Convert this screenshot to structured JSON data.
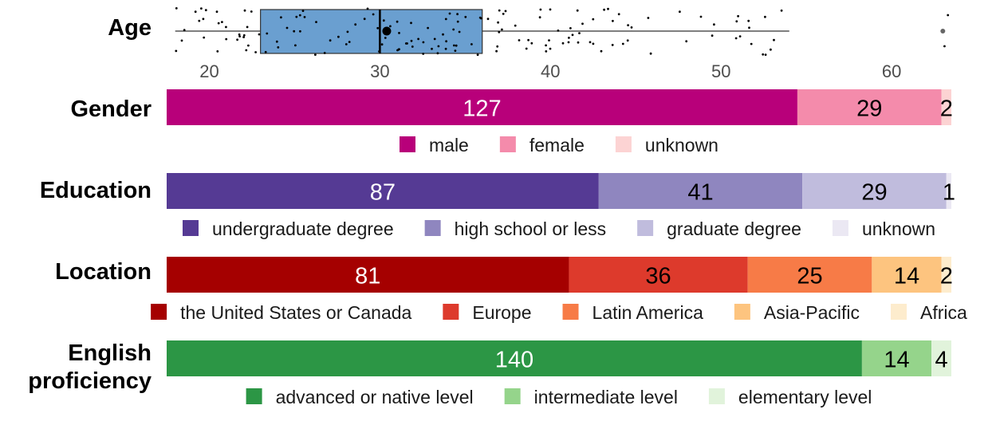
{
  "chart_data": [
    {
      "type": "boxplot",
      "row_label": "Age",
      "xlim": [
        17.5,
        63.5
      ],
      "ticks": [
        20,
        30,
        40,
        50,
        60
      ],
      "stats": {
        "q1": 23,
        "median": 30,
        "mean": 30.4,
        "q3": 36,
        "whisker_low": 18,
        "whisker_high": 54,
        "outliers": [
          63
        ]
      },
      "box_color": "#6a9fd0"
    },
    {
      "type": "stacked_bar",
      "row_label": "Gender",
      "segments": [
        {
          "name": "male",
          "value": 127,
          "color": "#b8007a",
          "text_color": "#ffffff"
        },
        {
          "name": "female",
          "value": 29,
          "color": "#f48bab",
          "text_color": "#000000"
        },
        {
          "name": "unknown",
          "value": 2,
          "color": "#fcd3d3",
          "text_color": "#000000"
        }
      ]
    },
    {
      "type": "stacked_bar",
      "row_label": "Education",
      "segments": [
        {
          "name": "undergraduate degree",
          "value": 87,
          "color": "#553a94",
          "text_color": "#ffffff"
        },
        {
          "name": "high school or less",
          "value": 41,
          "color": "#8f86bf",
          "text_color": "#000000"
        },
        {
          "name": "graduate degree",
          "value": 29,
          "color": "#c0bcdd",
          "text_color": "#000000"
        },
        {
          "name": "unknown",
          "value": 1,
          "color": "#ebe8f3",
          "text_color": "#000000"
        }
      ]
    },
    {
      "type": "stacked_bar",
      "row_label": "Location",
      "segments": [
        {
          "name": "the United States or Canada",
          "value": 81,
          "color": "#a50000",
          "text_color": "#ffffff"
        },
        {
          "name": "Europe",
          "value": 36,
          "color": "#dd3a2c",
          "text_color": "#000000"
        },
        {
          "name": "Latin America",
          "value": 25,
          "color": "#f77b47",
          "text_color": "#000000"
        },
        {
          "name": "Asia-Pacific",
          "value": 14,
          "color": "#fdc47f",
          "text_color": "#000000"
        },
        {
          "name": "Africa",
          "value": 2,
          "color": "#fdeccd",
          "text_color": "#000000"
        }
      ]
    },
    {
      "type": "stacked_bar",
      "row_label": "English proficiency",
      "segments": [
        {
          "name": "advanced or native level",
          "value": 140,
          "color": "#2c9645",
          "text_color": "#ffffff"
        },
        {
          "name": "intermediate level",
          "value": 14,
          "color": "#95d48b",
          "text_color": "#000000"
        },
        {
          "name": "elementary level",
          "value": 4,
          "color": "#e1f3db",
          "text_color": "#000000"
        }
      ]
    }
  ]
}
